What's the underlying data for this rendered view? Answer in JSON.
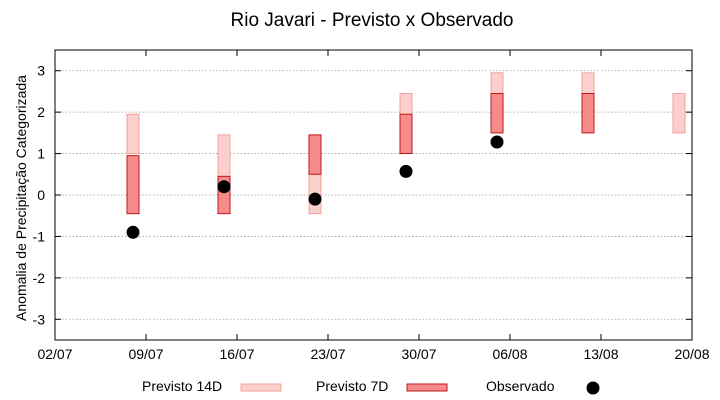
{
  "chart_data": {
    "type": "bar",
    "title": "Rio Javari - Previsto x Observado",
    "xlabel": "",
    "ylabel": "Anomalia de Precipitação Categorizada",
    "x_ticks": [
      "02/07",
      "09/07",
      "16/07",
      "23/07",
      "30/07",
      "06/08",
      "13/08",
      "20/08"
    ],
    "y_ticks": [
      "-3",
      "-2",
      "-1",
      "0",
      "1",
      "2",
      "3"
    ],
    "ylim": [
      -3.5,
      3.5
    ],
    "grid": true,
    "legend_position": "bottom",
    "series": [
      {
        "name": "Previsto 14D",
        "kind": "range",
        "color": "#f4a09a",
        "fill": "#fbd0cc",
        "points": [
          {
            "x": "08/07",
            "low": 1.0,
            "high": 1.95
          },
          {
            "x": "15/07",
            "low": 0.45,
            "high": 1.45
          },
          {
            "x": "22/07",
            "low": -0.45,
            "high": 1.45
          },
          {
            "x": "29/07",
            "low": 1.5,
            "high": 2.45
          },
          {
            "x": "05/08",
            "low": 1.5,
            "high": 2.95
          },
          {
            "x": "12/08",
            "low": 1.5,
            "high": 2.95
          },
          {
            "x": "19/08",
            "low": 1.5,
            "high": 2.45
          }
        ]
      },
      {
        "name": "Previsto 7D",
        "kind": "range",
        "color": "#c01818",
        "fill": "#f58b8b",
        "points": [
          {
            "x": "08/07",
            "low": -0.45,
            "high": 0.95
          },
          {
            "x": "15/07",
            "low": -0.45,
            "high": 0.45
          },
          {
            "x": "22/07",
            "low": 0.5,
            "high": 1.45
          },
          {
            "x": "29/07",
            "low": 1.0,
            "high": 1.95
          },
          {
            "x": "05/08",
            "low": 1.5,
            "high": 2.45
          },
          {
            "x": "12/08",
            "low": 1.5,
            "high": 2.45
          }
        ]
      },
      {
        "name": "Observado",
        "kind": "scatter",
        "color": "#000000",
        "points": [
          {
            "x": "08/07",
            "y": -0.9
          },
          {
            "x": "15/07",
            "y": 0.2
          },
          {
            "x": "22/07",
            "y": -0.1
          },
          {
            "x": "29/07",
            "y": 0.57
          },
          {
            "x": "05/08",
            "y": 1.28
          }
        ]
      }
    ]
  }
}
